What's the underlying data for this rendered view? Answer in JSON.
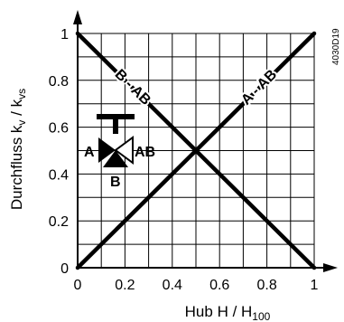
{
  "chart_data": {
    "type": "line",
    "xlabel": "Hub H / H",
    "xlabel_sub": "100",
    "ylabel": "Durchfluss k",
    "ylabel_sub1": "v",
    "ylabel_mid": " / k",
    "ylabel_sub2": "vs",
    "xlim": [
      0,
      1
    ],
    "ylim": [
      0,
      1
    ],
    "x_ticks": [
      0,
      0.2,
      0.4,
      0.6,
      0.8,
      1
    ],
    "x_tick_labels": [
      "0",
      "0.2",
      "0.4",
      "0.6",
      "0.8",
      "1"
    ],
    "y_ticks": [
      0,
      0.2,
      0.4,
      0.6,
      0.8,
      1
    ],
    "y_tick_labels": [
      "0",
      "0.2",
      "0.4",
      "0.6",
      "0.8",
      "1"
    ],
    "grid": true,
    "grid_step": 0.1,
    "series": [
      {
        "name": "A - AB",
        "x": [
          0,
          1
        ],
        "y": [
          0,
          1
        ]
      },
      {
        "name": "B - AB",
        "x": [
          0,
          1
        ],
        "y": [
          1,
          0
        ]
      }
    ],
    "valve_symbol": {
      "port_a": "A",
      "port_ab": "AB",
      "port_b": "B"
    },
    "doc_id": "4030D19"
  }
}
